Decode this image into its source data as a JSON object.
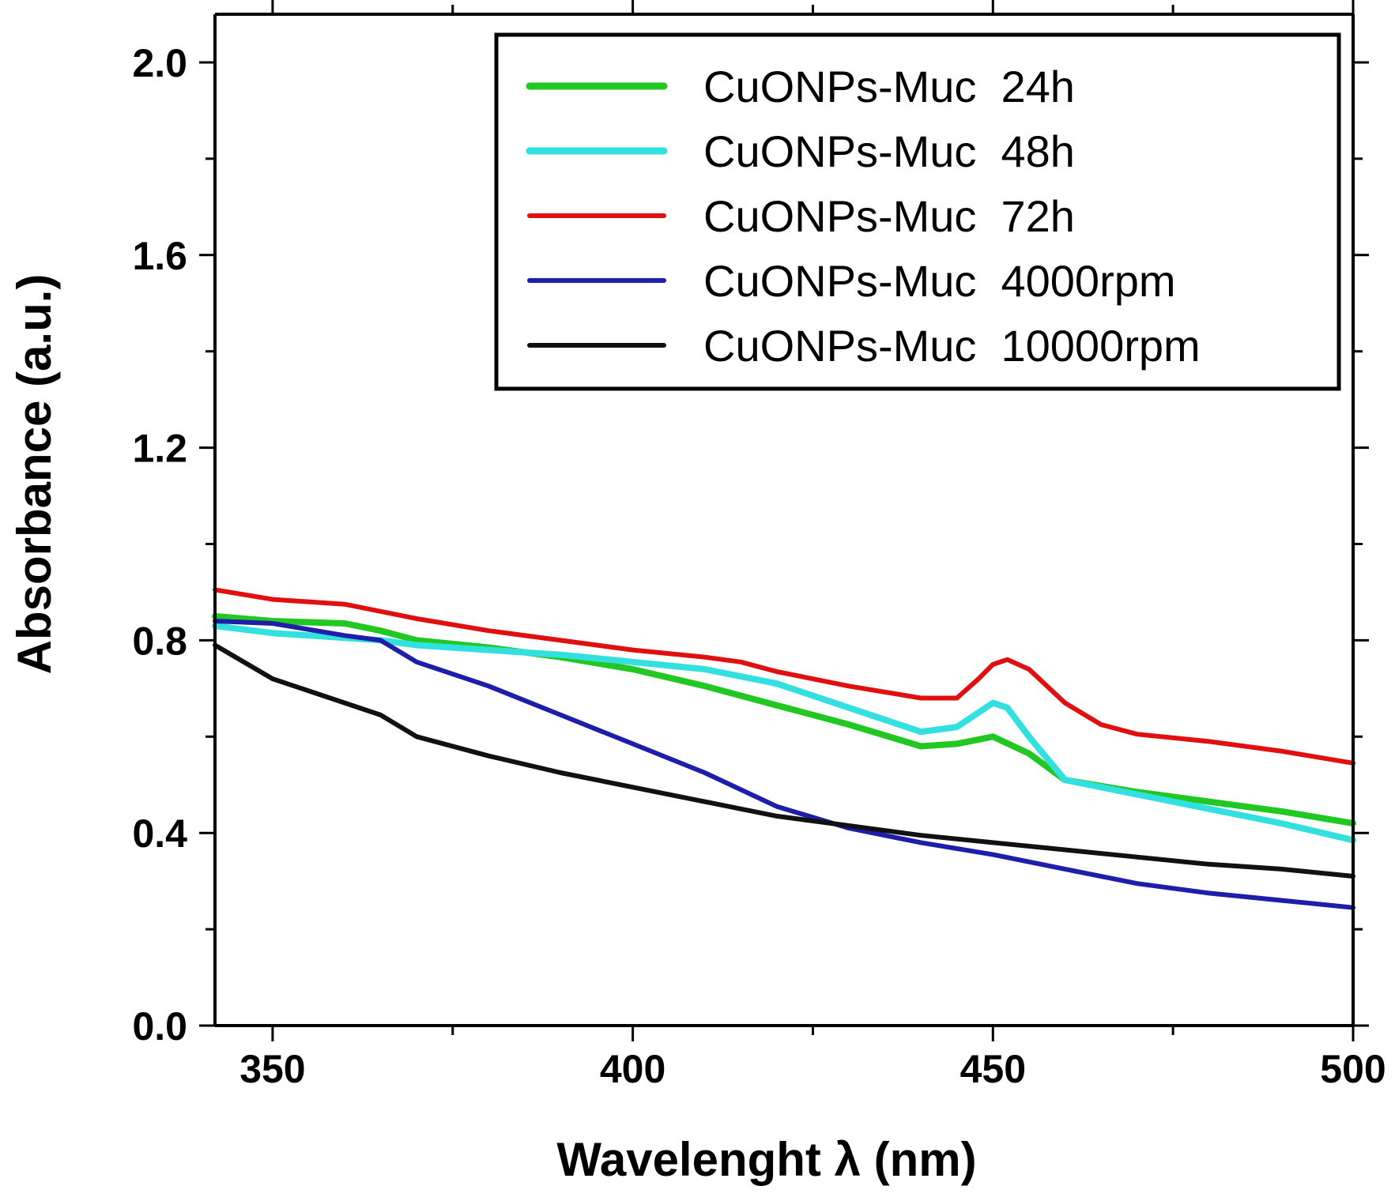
{
  "chart_data": {
    "type": "line",
    "xlabel": "Wavelenght λ (nm)",
    "ylabel": "Absorbance (a.u.)",
    "xlim": [
      342,
      500
    ],
    "ylim": [
      0.0,
      2.1
    ],
    "xticks": [
      350,
      400,
      450,
      500
    ],
    "xtick_labels": [
      "350",
      "400",
      "450",
      "500"
    ],
    "yticks": [
      0.0,
      0.4,
      0.8,
      1.2,
      1.6,
      2.0
    ],
    "ytick_labels": [
      "0.0",
      "0.4",
      "0.8",
      "1.2",
      "1.6",
      "2.0"
    ],
    "legend_position": "top-right",
    "grid": false,
    "series": [
      {
        "name": "CuONPs-Muc  24h",
        "color": "#22c822",
        "x": [
          342,
          350,
          360,
          365,
          370,
          380,
          390,
          400,
          410,
          420,
          430,
          440,
          445,
          450,
          455,
          460,
          470,
          480,
          490,
          500
        ],
        "y": [
          0.85,
          0.84,
          0.835,
          0.82,
          0.8,
          0.785,
          0.765,
          0.74,
          0.705,
          0.665,
          0.625,
          0.58,
          0.585,
          0.6,
          0.565,
          0.51,
          0.485,
          0.465,
          0.445,
          0.42
        ]
      },
      {
        "name": "CuONPs-Muc  48h",
        "color": "#33e0e0",
        "x": [
          342,
          350,
          360,
          365,
          370,
          380,
          390,
          400,
          410,
          420,
          430,
          440,
          445,
          448,
          450,
          452,
          455,
          460,
          470,
          480,
          490,
          500
        ],
        "y": [
          0.83,
          0.815,
          0.805,
          0.8,
          0.79,
          0.78,
          0.77,
          0.755,
          0.74,
          0.71,
          0.66,
          0.61,
          0.62,
          0.65,
          0.67,
          0.66,
          0.6,
          0.51,
          0.48,
          0.45,
          0.42,
          0.385
        ]
      },
      {
        "name": "CuONPs-Muc  72h",
        "color": "#e01010",
        "x": [
          342,
          350,
          360,
          365,
          370,
          380,
          390,
          400,
          410,
          415,
          420,
          430,
          440,
          445,
          448,
          450,
          452,
          455,
          460,
          465,
          470,
          480,
          490,
          500
        ],
        "y": [
          0.905,
          0.885,
          0.875,
          0.86,
          0.845,
          0.82,
          0.8,
          0.78,
          0.765,
          0.755,
          0.735,
          0.705,
          0.68,
          0.68,
          0.72,
          0.75,
          0.76,
          0.74,
          0.67,
          0.625,
          0.605,
          0.59,
          0.57,
          0.545
        ]
      },
      {
        "name": "CuONPs-Muc  4000rpm",
        "color": "#1e1eaa",
        "x": [
          342,
          350,
          360,
          365,
          370,
          380,
          390,
          400,
          410,
          420,
          430,
          440,
          450,
          460,
          470,
          480,
          490,
          500
        ],
        "y": [
          0.84,
          0.835,
          0.81,
          0.8,
          0.755,
          0.705,
          0.645,
          0.585,
          0.525,
          0.455,
          0.41,
          0.38,
          0.355,
          0.325,
          0.295,
          0.275,
          0.26,
          0.245
        ]
      },
      {
        "name": "CuONPs-Muc  10000rpm",
        "color": "#111111",
        "x": [
          342,
          350,
          360,
          365,
          370,
          380,
          390,
          400,
          410,
          420,
          430,
          440,
          450,
          460,
          470,
          480,
          490,
          500
        ],
        "y": [
          0.79,
          0.72,
          0.67,
          0.645,
          0.6,
          0.56,
          0.525,
          0.495,
          0.465,
          0.435,
          0.415,
          0.395,
          0.38,
          0.365,
          0.35,
          0.335,
          0.325,
          0.31
        ]
      }
    ]
  }
}
